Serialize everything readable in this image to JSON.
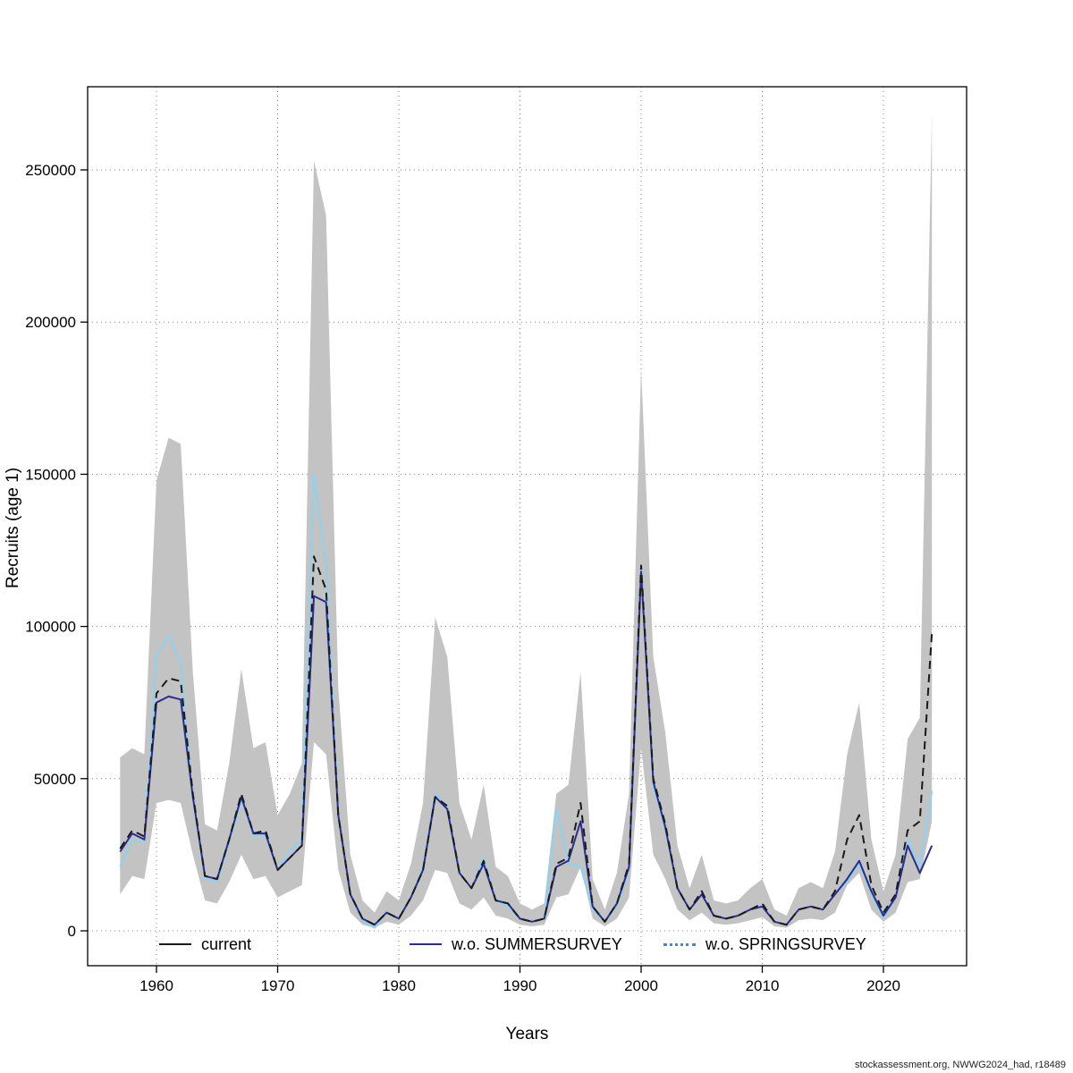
{
  "figure": {
    "footer": "stockassessment.org, NWWG2024_had, r18489"
  },
  "chart_data": {
    "type": "line",
    "title": "",
    "xlabel": "Years",
    "ylabel": "Recruits (age 1)",
    "xticks": [
      1960,
      1970,
      1980,
      1990,
      2000,
      2010,
      2020
    ],
    "yticks": [
      0,
      50000,
      100000,
      150000,
      200000,
      250000
    ],
    "ytick_labels": [
      "0",
      "50000",
      "100000",
      "150000",
      "200000",
      "250000"
    ],
    "xlim": [
      1955.5,
      2026
    ],
    "ylim": [
      0,
      277000
    ],
    "grid": "dotted",
    "legend_position": "bottom-inside",
    "band_color": "#c3c3c3",
    "years": [
      1957,
      1958,
      1959,
      1960,
      1961,
      1962,
      1963,
      1964,
      1965,
      1966,
      1967,
      1968,
      1969,
      1970,
      1971,
      1972,
      1973,
      1974,
      1975,
      1976,
      1977,
      1978,
      1979,
      1980,
      1981,
      1982,
      1983,
      1984,
      1985,
      1986,
      1987,
      1988,
      1989,
      1990,
      1991,
      1992,
      1993,
      1994,
      1995,
      1996,
      1997,
      1998,
      1999,
      2000,
      2001,
      2002,
      2003,
      2004,
      2005,
      2006,
      2007,
      2008,
      2009,
      2010,
      2011,
      2012,
      2013,
      2014,
      2015,
      2016,
      2017,
      2018,
      2019,
      2020,
      2021,
      2022,
      2023,
      2024
    ],
    "band": {
      "name": "current confidence interval",
      "lower": [
        12000,
        18000,
        17000,
        42000,
        43000,
        42000,
        25000,
        10000,
        9000,
        16000,
        25000,
        17000,
        18000,
        11000,
        13000,
        15000,
        62000,
        58000,
        20000,
        6000,
        2000,
        1000,
        3000,
        2000,
        5000,
        10000,
        20000,
        19000,
        9000,
        7000,
        11000,
        5000,
        4000,
        2000,
        1500,
        2000,
        11000,
        12000,
        21000,
        4000,
        1500,
        4000,
        11000,
        60000,
        25000,
        17000,
        7000,
        3500,
        6000,
        2500,
        2000,
        2500,
        3500,
        4500,
        1500,
        1000,
        3500,
        4000,
        3500,
        6000,
        15000,
        19000,
        7000,
        3000,
        6000,
        16000,
        17000,
        36000
      ],
      "upper": [
        57000,
        60000,
        58000,
        148000,
        162000,
        160000,
        85000,
        35000,
        33000,
        55000,
        86000,
        60000,
        62000,
        38000,
        45000,
        55000,
        253000,
        235000,
        80000,
        25000,
        10000,
        6000,
        13000,
        10000,
        22000,
        42000,
        103000,
        90000,
        42000,
        30000,
        48000,
        21000,
        18000,
        9000,
        7000,
        9000,
        45000,
        48000,
        85000,
        17000,
        7000,
        19000,
        45000,
        185000,
        90000,
        65000,
        28000,
        14000,
        25000,
        10000,
        9000,
        10000,
        14000,
        17000,
        7000,
        5000,
        14000,
        16000,
        14000,
        26000,
        58000,
        75000,
        30000,
        13000,
        25000,
        63000,
        70000,
        268000
      ]
    },
    "series": [
      {
        "name": "current",
        "color": "#1a1a1a",
        "style": "dashed",
        "legend_style": "solid",
        "values": [
          27000,
          33000,
          31000,
          78000,
          83000,
          82000,
          45000,
          18000,
          17000,
          30000,
          45000,
          32000,
          33000,
          20000,
          24000,
          28000,
          123000,
          112000,
          38000,
          12000,
          4000,
          2000,
          6000,
          4000,
          11000,
          20000,
          44000,
          41000,
          19000,
          14000,
          23000,
          10000,
          9000,
          4000,
          3000,
          4000,
          22000,
          24000,
          42000,
          8000,
          3000,
          9000,
          22000,
          120000,
          50000,
          35000,
          14000,
          7000,
          13000,
          5000,
          4000,
          5000,
          7000,
          9000,
          3000,
          2000,
          7000,
          8000,
          7000,
          13000,
          30000,
          38000,
          15000,
          6000,
          12000,
          33000,
          36000,
          98000
        ]
      },
      {
        "name": "w.o. SUMMERSURVEY",
        "color": "#2c2c8e",
        "style": "solid",
        "legend_style": "solid",
        "values": [
          26000,
          32000,
          30000,
          75000,
          77000,
          76000,
          44000,
          18000,
          17000,
          30000,
          44000,
          32000,
          32000,
          20000,
          24000,
          28000,
          110000,
          108000,
          38000,
          12000,
          4000,
          2000,
          6000,
          4000,
          11000,
          20000,
          44000,
          40000,
          19000,
          14000,
          22000,
          10000,
          9000,
          4000,
          3000,
          4000,
          21000,
          23000,
          36000,
          8000,
          3000,
          9000,
          21000,
          118000,
          49000,
          34000,
          14000,
          7000,
          12000,
          5000,
          4000,
          5000,
          7000,
          8000,
          3000,
          2000,
          7000,
          8000,
          7000,
          12000,
          17000,
          23000,
          13000,
          5000,
          11000,
          28000,
          19000,
          28000
        ]
      },
      {
        "name": "w.o. SPRINGSURVEY",
        "color": "#8fd2f0",
        "style": "solid",
        "legend_style": "dotted",
        "legend_color": "#4a86c8",
        "values": [
          21000,
          30000,
          29000,
          90000,
          97000,
          88000,
          43000,
          17000,
          16000,
          29000,
          43000,
          31000,
          31000,
          20000,
          26000,
          30000,
          150000,
          120000,
          38000,
          12000,
          3000,
          1000,
          6000,
          4000,
          11000,
          21000,
          45000,
          41000,
          19000,
          14000,
          24000,
          10000,
          8000,
          4000,
          3000,
          4000,
          40000,
          22000,
          21000,
          7000,
          3000,
          8000,
          20000,
          120000,
          48000,
          33000,
          14000,
          7000,
          12000,
          5000,
          4000,
          5000,
          7000,
          8000,
          3000,
          2000,
          7000,
          8000,
          7000,
          12000,
          16000,
          22000,
          12000,
          4000,
          11000,
          30000,
          21000,
          46000
        ]
      }
    ]
  }
}
